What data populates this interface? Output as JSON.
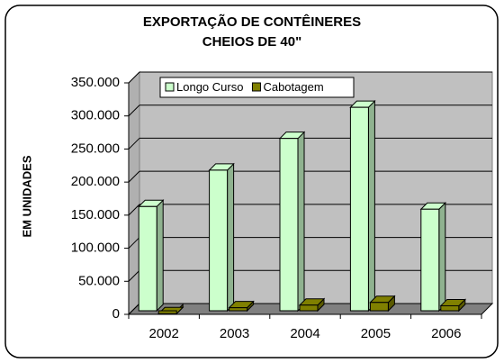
{
  "chart_data": {
    "type": "bar3d",
    "title": [
      "EXPORTAÇÃO DE CONTÊINERES",
      "CHEIOS DE 40\""
    ],
    "y_label": "EM UNIDADES",
    "categories": [
      "2002",
      "2003",
      "2004",
      "2005",
      "2006"
    ],
    "series": [
      {
        "name": "Longo Curso",
        "color": "#ccffcc",
        "values": [
          163000,
          218000,
          266000,
          313000,
          159000
        ]
      },
      {
        "name": "Cabotagem",
        "color": "#808000",
        "values": [
          1000,
          10000,
          14000,
          18000,
          13000
        ]
      }
    ],
    "ylim": [
      0,
      350000
    ],
    "yticks": [
      0,
      {
        "value": 50000,
        "label": "50.000"
      },
      {
        "value": 100000,
        "label": "100.000"
      },
      {
        "value": 150000,
        "label": "150.000"
      },
      {
        "value": 200000,
        "label": "200.000"
      },
      {
        "value": 250000,
        "label": "250.000"
      },
      {
        "value": 300000,
        "label": "300.000"
      },
      {
        "value": 350000,
        "label": "350.000"
      }
    ],
    "grid": true
  }
}
